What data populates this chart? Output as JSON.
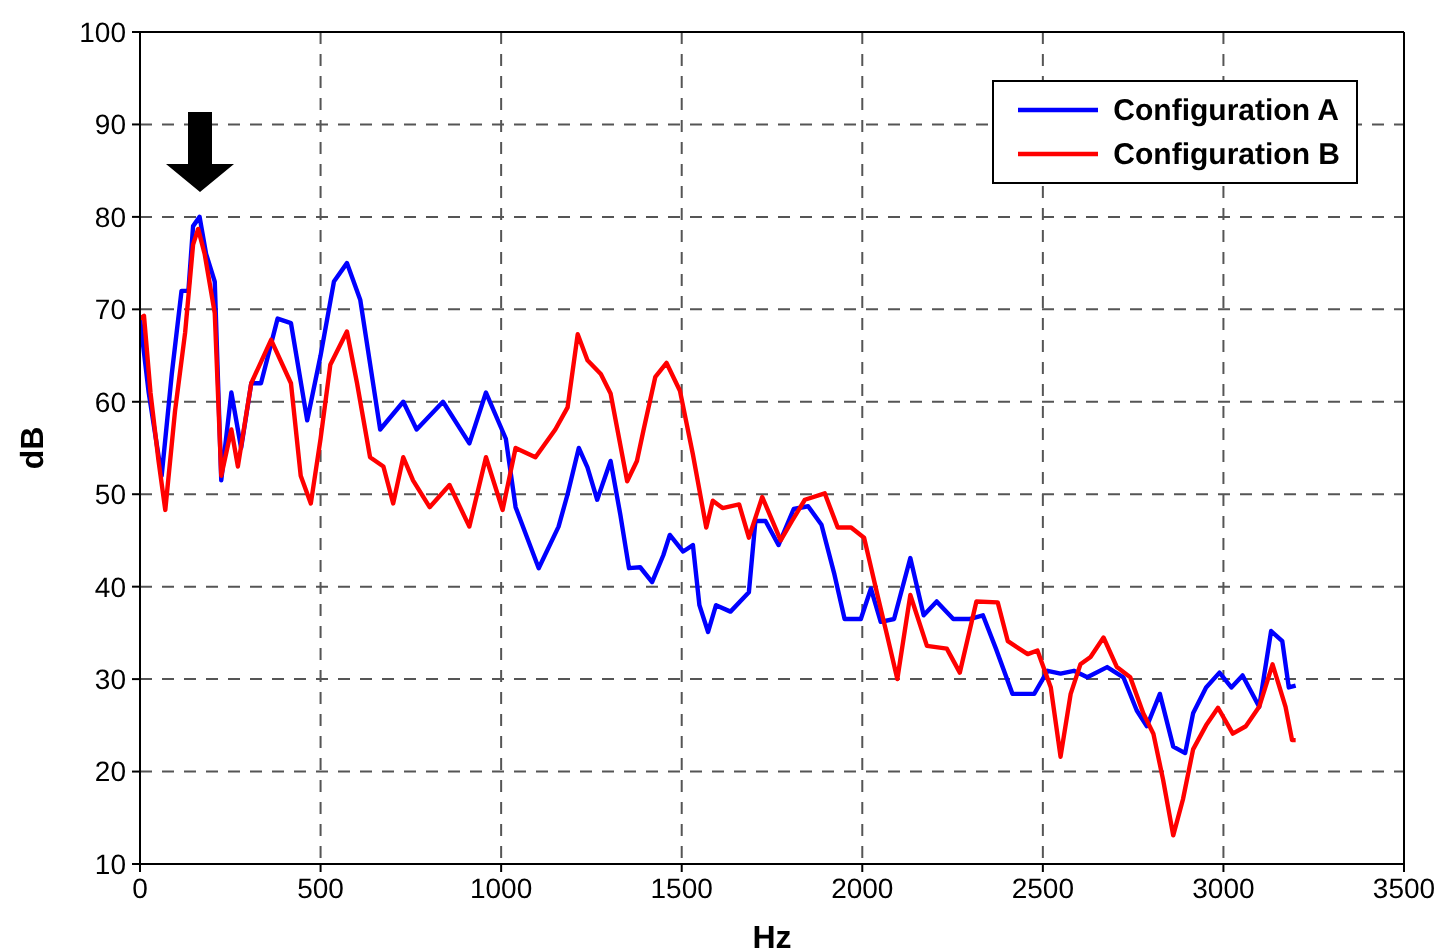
{
  "chart_data": {
    "type": "line",
    "xlabel": "Hz",
    "ylabel": "dB",
    "xlim": [
      0,
      3500
    ],
    "xticks": [
      0,
      500,
      1000,
      1500,
      2000,
      2500,
      3000,
      3500
    ],
    "ylim": [
      10,
      100
    ],
    "yticks": [
      10,
      20,
      30,
      40,
      50,
      60,
      70,
      80,
      90,
      100
    ],
    "grid": true,
    "legend": "top right",
    "line_style": "solid",
    "marker": "none",
    "series": [
      {
        "name": "Configuration A",
        "color": "#0000ff",
        "x": [
          0,
          24,
          60,
          88,
          115,
          134,
          147,
          165,
          183,
          207,
          225,
          253,
          280,
          308,
          335,
          381,
          418,
          463,
          500,
          537,
          573,
          610,
          665,
          729,
          766,
          839,
          912,
          958,
          1013,
          1040,
          1104,
          1159,
          1184,
          1215,
          1239,
          1266,
          1303,
          1330,
          1354,
          1385,
          1418,
          1449,
          1467,
          1504,
          1531,
          1549,
          1573,
          1595,
          1635,
          1686,
          1704,
          1732,
          1768,
          1810,
          1850,
          1887,
          1923,
          1951,
          1996,
          2024,
          2051,
          2088,
          2133,
          2170,
          2206,
          2252,
          2297,
          2334,
          2370,
          2416,
          2476,
          2513,
          2549,
          2586,
          2623,
          2678,
          2723,
          2760,
          2788,
          2824,
          2861,
          2894,
          2916,
          2952,
          2989,
          3022,
          3053,
          3099,
          3132,
          3163,
          3181,
          3200
        ],
        "values": [
          69,
          61,
          52,
          63,
          72,
          72,
          79,
          80,
          76,
          73,
          51.5,
          61,
          55,
          62,
          62,
          69,
          68.5,
          58,
          65,
          73,
          75,
          71,
          57,
          60,
          57,
          60,
          55.5,
          61,
          56,
          48.6,
          42,
          46.5,
          50,
          55,
          52.9,
          49.4,
          53.6,
          47.8,
          42,
          42.1,
          40.5,
          43.4,
          45.6,
          43.8,
          44.5,
          38,
          35.1,
          38,
          37.3,
          39.4,
          47.1,
          47.1,
          44.5,
          48.4,
          48.7,
          46.7,
          41.3,
          36.5,
          36.5,
          39.8,
          36.2,
          36.5,
          43.1,
          36.9,
          38.4,
          36.5,
          36.5,
          36.9,
          33.3,
          28.4,
          28.4,
          30.9,
          30.6,
          30.9,
          30.2,
          31.3,
          30.2,
          26.6,
          24.9,
          28.4,
          22.7,
          22,
          26.3,
          29.1,
          30.7,
          29.1,
          30.4,
          27,
          35.2,
          34.1,
          29.1,
          29.3
        ]
      },
      {
        "name": "Configuration B",
        "color": "#ff0000",
        "x": [
          0,
          11,
          29,
          51,
          70,
          97,
          125,
          147,
          161,
          179,
          207,
          225,
          253,
          271,
          308,
          363,
          418,
          445,
          473,
          500,
          527,
          573,
          601,
          637,
          674,
          701,
          729,
          756,
          802,
          857,
          912,
          958,
          1004,
          1040,
          1095,
          1150,
          1184,
          1212,
          1239,
          1276,
          1303,
          1349,
          1376,
          1394,
          1427,
          1458,
          1495,
          1531,
          1568,
          1586,
          1613,
          1659,
          1686,
          1723,
          1774,
          1805,
          1841,
          1896,
          1932,
          1969,
          2005,
          2042,
          2069,
          2097,
          2133,
          2179,
          2234,
          2270,
          2316,
          2375,
          2403,
          2458,
          2485,
          2522,
          2549,
          2577,
          2604,
          2632,
          2668,
          2705,
          2742,
          2778,
          2806,
          2833,
          2861,
          2888,
          2916,
          2952,
          2985,
          3026,
          3062,
          3099,
          3136,
          3172,
          3190,
          3200
        ],
        "values": [
          69,
          69.3,
          61,
          53.7,
          48.3,
          59,
          67.5,
          77,
          78.7,
          76,
          69.6,
          52,
          57,
          53,
          62,
          66.7,
          62,
          52,
          49,
          56,
          64,
          67.6,
          62,
          54,
          53,
          49,
          54,
          51.5,
          48.6,
          51,
          46.5,
          54,
          48.3,
          55,
          54,
          57,
          59.4,
          67.3,
          64.5,
          63,
          60.9,
          51.4,
          53.6,
          56.9,
          62.7,
          64.2,
          61.2,
          54.3,
          46.4,
          49.3,
          48.5,
          48.9,
          45.3,
          49.7,
          45,
          47.1,
          49.4,
          50.1,
          46.4,
          46.4,
          45.3,
          39.1,
          34.7,
          30,
          39.1,
          33.6,
          33.3,
          30.7,
          38.4,
          38.3,
          34.1,
          32.7,
          33.1,
          29.1,
          21.6,
          28.4,
          31.6,
          32.4,
          34.5,
          31.3,
          30.2,
          26.3,
          24.1,
          19.1,
          13.1,
          17,
          22.4,
          25,
          26.9,
          24.1,
          24.9,
          27,
          31.6,
          27,
          23.4,
          23.4
        ]
      }
    ]
  }
}
